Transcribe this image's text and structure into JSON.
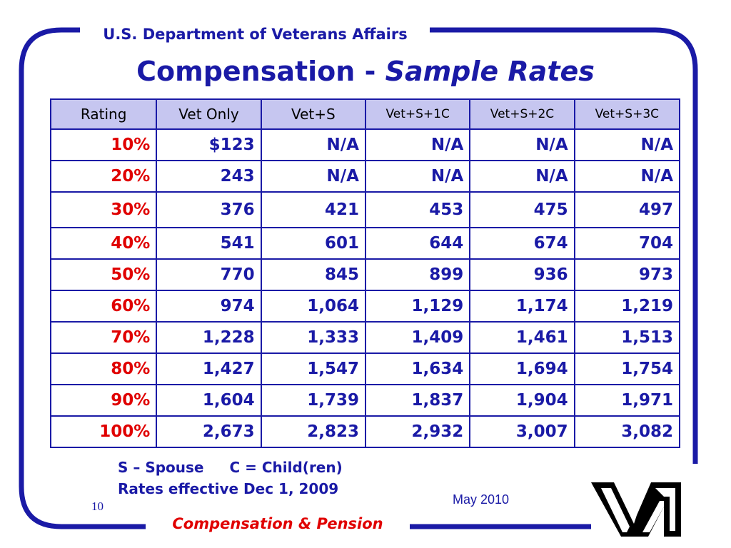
{
  "header": {
    "organization": "U.S. Department of Veterans Affairs"
  },
  "title": {
    "main": "Compensation - ",
    "emphasis": "Sample Rates"
  },
  "table": {
    "columns": [
      "Rating",
      "Vet Only",
      "Vet+S",
      "Vet+S+1C",
      "Vet+S+2C",
      "Vet+S+3C"
    ],
    "rows": [
      [
        "10%",
        "$123",
        "N/A",
        "N/A",
        "N/A",
        "N/A"
      ],
      [
        "20%",
        "243",
        "N/A",
        "N/A",
        "N/A",
        "N/A"
      ],
      [
        "30%",
        "376",
        "421",
        "453",
        "475",
        "497"
      ],
      [
        "40%",
        "541",
        "601",
        "644",
        "674",
        "704"
      ],
      [
        "50%",
        "770",
        "845",
        "899",
        "936",
        "973"
      ],
      [
        "60%",
        "974",
        "1,064",
        "1,129",
        "1,174",
        "1,219"
      ],
      [
        "70%",
        "1,228",
        "1,333",
        "1,409",
        "1,461",
        "1,513"
      ],
      [
        "80%",
        "1,427",
        "1,547",
        "1,634",
        "1,694",
        "1,754"
      ],
      [
        "90%",
        "1,604",
        "1,739",
        "1,837",
        "1,904",
        "1,971"
      ],
      [
        "100%",
        "2,673",
        "2,823",
        "2,932",
        "3,007",
        "3,082"
      ]
    ]
  },
  "notes": {
    "spouse": "S – Spouse",
    "child": "C = Child(ren)",
    "effective": "Rates effective Dec 1, 2009"
  },
  "page_number": "10",
  "date": "May 2010",
  "footer": {
    "label": "Compensation & Pension"
  },
  "logo": {
    "icon": "va-logo-icon"
  },
  "colors": {
    "primary_blue": "#1a1aa6",
    "accent_red": "#e00000",
    "header_fill": "#c6c6f0"
  }
}
